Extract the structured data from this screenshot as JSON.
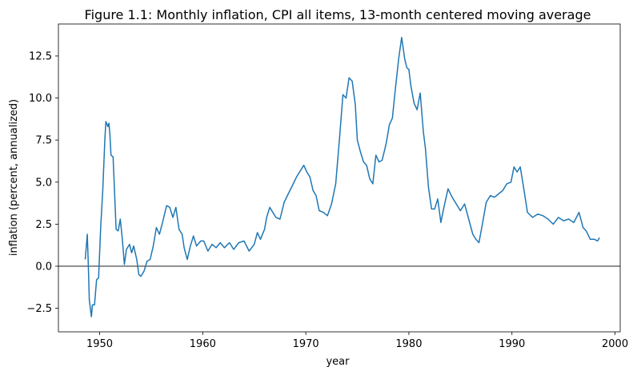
{
  "chart_data": {
    "type": "line",
    "title": "Figure 1.1: Monthly inflation, CPI all items, 13-month centered moving average",
    "xlabel": "year",
    "ylabel": "inflation (percent, annualized)",
    "xlim": [
      1946.0,
      2000.5
    ],
    "ylim": [
      -3.9,
      14.4
    ],
    "xticks": [
      1950,
      1960,
      1970,
      1980,
      1990,
      2000
    ],
    "xtick_labels": [
      "1950",
      "1960",
      "1970",
      "1980",
      "1990",
      "2000"
    ],
    "yticks": [
      -2.5,
      0.0,
      2.5,
      5.0,
      7.5,
      10.0,
      12.5
    ],
    "ytick_labels": [
      "−2.5",
      "0.0",
      "2.5",
      "5.0",
      "7.5",
      "10.0",
      "12.5"
    ],
    "zero_line": true,
    "grid": false,
    "line_color": "#1f77b4",
    "series": [
      {
        "x": [
          1948.6,
          1948.8,
          1948.9,
          1949.0,
          1949.2,
          1949.3,
          1949.5,
          1949.7,
          1949.9,
          1950.1,
          1950.3,
          1950.5,
          1950.6,
          1950.8,
          1950.9,
          1951.0,
          1951.1,
          1951.3,
          1951.6,
          1951.8,
          1952.0,
          1952.2,
          1952.4,
          1952.6,
          1952.9,
          1953.1,
          1953.3,
          1953.6,
          1953.8,
          1954.0,
          1954.3,
          1954.6,
          1954.9,
          1955.2,
          1955.5,
          1955.8,
          1956.1,
          1956.5,
          1956.8,
          1957.1,
          1957.4,
          1957.7,
          1958.0,
          1958.2,
          1958.5,
          1958.8,
          1959.1,
          1959.4,
          1959.8,
          1960.1,
          1960.5,
          1960.9,
          1961.3,
          1961.7,
          1962.1,
          1962.6,
          1963.0,
          1963.5,
          1964.0,
          1964.5,
          1965.0,
          1965.3,
          1965.6,
          1966.0,
          1966.2,
          1966.5,
          1966.8,
          1967.1,
          1967.5,
          1967.9,
          1968.3,
          1968.7,
          1969.1,
          1969.5,
          1969.8,
          1970.1,
          1970.4,
          1970.7,
          1971.0,
          1971.3,
          1971.7,
          1972.1,
          1972.5,
          1972.9,
          1973.3,
          1973.6,
          1973.9,
          1974.2,
          1974.5,
          1974.8,
          1975.0,
          1975.3,
          1975.6,
          1975.9,
          1976.2,
          1976.5,
          1976.8,
          1977.1,
          1977.4,
          1977.8,
          1978.1,
          1978.4,
          1978.7,
          1979.0,
          1979.3,
          1979.6,
          1979.8,
          1980.0,
          1980.2,
          1980.5,
          1980.8,
          1981.1,
          1981.4,
          1981.6,
          1981.9,
          1982.2,
          1982.5,
          1982.8,
          1983.1,
          1983.4,
          1983.8,
          1984.2,
          1984.6,
          1985.0,
          1985.4,
          1985.8,
          1986.2,
          1986.5,
          1986.8,
          1987.1,
          1987.5,
          1987.9,
          1988.3,
          1988.7,
          1989.1,
          1989.5,
          1989.9,
          1990.2,
          1990.5,
          1990.8,
          1991.1,
          1991.5,
          1992.0,
          1992.5,
          1993.0,
          1993.5,
          1994.0,
          1994.5,
          1995.0,
          1995.5,
          1996.0,
          1996.5,
          1996.9,
          1997.2,
          1997.6,
          1998.0,
          1998.3,
          1998.5
        ],
        "values": [
          0.4,
          1.9,
          0.0,
          -2.0,
          -3.0,
          -2.3,
          -2.3,
          -0.8,
          -0.7,
          2.3,
          4.5,
          7.5,
          8.6,
          8.3,
          8.5,
          7.8,
          6.6,
          6.5,
          2.2,
          2.1,
          2.8,
          1.6,
          0.1,
          1.0,
          1.3,
          0.8,
          1.2,
          0.4,
          -0.5,
          -0.6,
          -0.3,
          0.3,
          0.4,
          1.2,
          2.3,
          1.9,
          2.6,
          3.6,
          3.5,
          2.9,
          3.5,
          2.2,
          1.9,
          1.1,
          0.4,
          1.2,
          1.8,
          1.2,
          1.5,
          1.5,
          0.9,
          1.3,
          1.1,
          1.4,
          1.1,
          1.4,
          1.0,
          1.4,
          1.5,
          0.9,
          1.3,
          2.0,
          1.6,
          2.2,
          2.9,
          3.5,
          3.2,
          2.9,
          2.8,
          3.8,
          4.3,
          4.8,
          5.3,
          5.7,
          6.0,
          5.6,
          5.3,
          4.5,
          4.2,
          3.3,
          3.2,
          3.0,
          3.7,
          4.9,
          7.8,
          10.2,
          10.0,
          11.2,
          11.0,
          9.6,
          7.5,
          6.8,
          6.2,
          6.0,
          5.2,
          4.9,
          6.6,
          6.2,
          6.3,
          7.3,
          8.4,
          8.8,
          10.6,
          12.3,
          13.6,
          12.3,
          11.8,
          11.7,
          10.7,
          9.7,
          9.3,
          10.3,
          8.0,
          7.0,
          4.7,
          3.4,
          3.4,
          4.0,
          2.6,
          3.5,
          4.6,
          4.1,
          3.7,
          3.3,
          3.7,
          2.8,
          1.9,
          1.6,
          1.4,
          2.4,
          3.8,
          4.2,
          4.1,
          4.3,
          4.5,
          4.9,
          5.0,
          5.9,
          5.6,
          5.9,
          4.8,
          3.2,
          2.9,
          3.1,
          3.0,
          2.8,
          2.5,
          2.9,
          2.7,
          2.8,
          2.6,
          3.2,
          2.3,
          2.1,
          1.6,
          1.6,
          1.5,
          1.7
        ]
      }
    ]
  }
}
